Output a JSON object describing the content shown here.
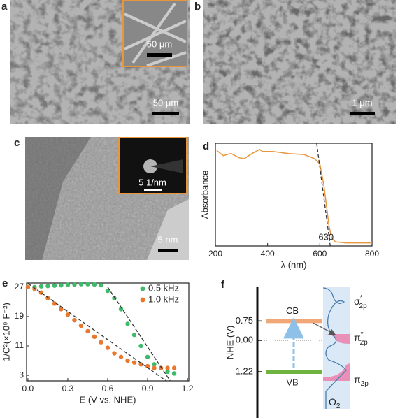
{
  "panels": {
    "a": {
      "label": "a",
      "scale_bar": "50 μm",
      "inset_scale_bar": "50 μm"
    },
    "b": {
      "label": "b",
      "scale_bar": "1 μm"
    },
    "c": {
      "label": "c",
      "scale_bar": "5 nm",
      "inset_scale_bar": "5 1/nm"
    },
    "d": {
      "label": "d"
    },
    "e": {
      "label": "e"
    },
    "f": {
      "label": "f"
    }
  },
  "chart_data": [
    {
      "type": "line",
      "xlabel": "λ (nm)",
      "ylabel": "Absorbance",
      "annotation": "630",
      "x": [
        205,
        230,
        260,
        290,
        310,
        340,
        370,
        380,
        420,
        480,
        540,
        580,
        600,
        615,
        625,
        635,
        645,
        660,
        700,
        800
      ],
      "series": [
        {
          "color": "#e8963e",
          "values": [
            0.93,
            0.88,
            0.9,
            0.86,
            0.85,
            0.9,
            0.94,
            0.92,
            0.92,
            0.9,
            0.89,
            0.85,
            0.8,
            0.6,
            0.4,
            0.2,
            0.08,
            0.04,
            0.03,
            0.03
          ]
        }
      ],
      "fit": {
        "x": [
          588,
          640
        ],
        "values": [
          1,
          0
        ]
      },
      "xlim": [
        200,
        800
      ],
      "ylim": [
        0,
        1
      ],
      "xticks": [
        200,
        400,
        600,
        800
      ]
    },
    {
      "type": "scatter",
      "xlabel": "E (V vs. NHE)",
      "ylabel": "1/C²(×10⁹ F⁻²)",
      "legend": "top-right",
      "x": [
        0,
        0.05,
        0.1,
        0.15,
        0.2,
        0.25,
        0.3,
        0.35,
        0.4,
        0.45,
        0.5,
        0.55,
        0.6,
        0.65,
        0.7,
        0.75,
        0.8,
        0.85,
        0.9,
        0.95,
        1.0,
        1.05,
        1.1
      ],
      "series": [
        {
          "name": "0.5 kHz",
          "color": "#3dbb6a",
          "values": [
            27,
            27,
            27.2,
            27.3,
            27.4,
            27.5,
            27.6,
            27.7,
            27.8,
            27.8,
            27.7,
            27.5,
            26,
            24,
            21,
            17,
            14,
            11,
            8,
            6,
            5,
            4,
            3.5
          ]
        },
        {
          "name": "1.0 kHz",
          "color": "#e8782e",
          "values": [
            27,
            26.5,
            25.5,
            24,
            22.5,
            21,
            19.5,
            18,
            16.5,
            15,
            13.5,
            12,
            10.5,
            9,
            8,
            7,
            6.5,
            6,
            5.5,
            5,
            5,
            5,
            5
          ]
        }
      ],
      "fits": [
        {
          "x": [
            0.6,
            1.07
          ],
          "values": [
            27,
            1.5
          ]
        },
        {
          "x": [
            0,
            1.04
          ],
          "values": [
            28,
            1.5
          ]
        }
      ],
      "xlim": [
        -0.01,
        1.21
      ],
      "ylim": [
        1.5,
        28.1
      ],
      "xticks": [
        {
          "value": 0,
          "label": "0.0"
        },
        0.3,
        0.6,
        0.9,
        1.2
      ],
      "yticks": [
        3,
        11,
        19,
        27
      ]
    }
  ],
  "diagram": {
    "axis_label": "NHE (V)",
    "levels": [
      {
        "value": -0.75,
        "label": "-0.75"
      },
      {
        "value": 0,
        "label": "0.00"
      },
      {
        "value": 1.22,
        "label": "1.22"
      }
    ],
    "cb": "CB",
    "vb": "VB",
    "orbitals": [
      {
        "symbol": "σ",
        "sup": "*",
        "sub": "2p"
      },
      {
        "symbol": "π",
        "sup": "*",
        "sub": "2p"
      },
      {
        "symbol": "π",
        "sub": "2p"
      }
    ],
    "molecule": {
      "symbol": "O",
      "sub": "2"
    }
  }
}
